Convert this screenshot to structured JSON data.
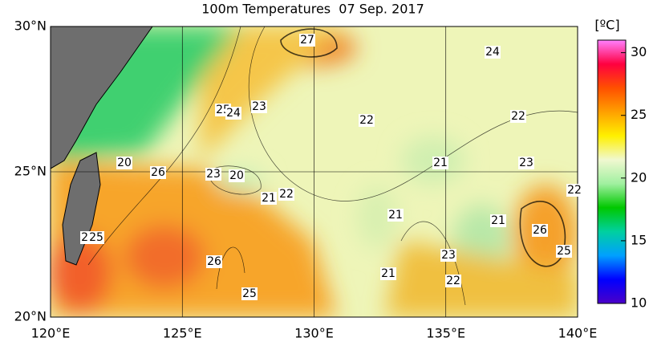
{
  "title": "100m Temperatures  07 Sep. 2017",
  "map": {
    "xlim": [
      120,
      140
    ],
    "ylim": [
      20,
      30
    ],
    "xticks": [
      {
        "value": 120,
        "label": "120°E"
      },
      {
        "value": 125,
        "label": "125°E"
      },
      {
        "value": 130,
        "label": "130°E"
      },
      {
        "value": 135,
        "label": "135°E"
      },
      {
        "value": 140,
        "label": "140°E"
      }
    ],
    "yticks": [
      {
        "value": 20,
        "label": "20°N"
      },
      {
        "value": 25,
        "label": "25°N"
      },
      {
        "value": 30,
        "label": "30°N"
      }
    ],
    "contour_labels": [
      "27",
      "24",
      "22",
      "22",
      "25",
      "24",
      "23",
      "20",
      "26",
      "23",
      "20",
      "21",
      "22",
      "21",
      "23",
      "22",
      "21",
      "21",
      "26",
      "25",
      "23",
      "22",
      "21",
      "26",
      "25",
      "22",
      "25"
    ]
  },
  "colorbar": {
    "unit": "[ºC]",
    "lim": [
      10,
      31
    ],
    "ticks": [
      10,
      15,
      20,
      25,
      30
    ],
    "colors": [
      "#4b00c8",
      "#0000ff",
      "#00a0ff",
      "#00d0a0",
      "#00c800",
      "#a0f0a0",
      "#f0f8d0",
      "#fff000",
      "#ffa000",
      "#ff5000",
      "#ff0040",
      "#ff80ff"
    ]
  }
}
